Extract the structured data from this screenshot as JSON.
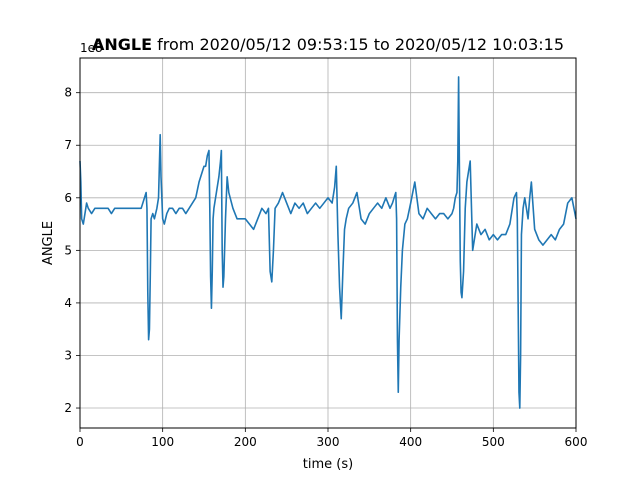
{
  "chart_data": {
    "type": "line",
    "title_bold": "ANGLE",
    "title_rest": " from 2020/05/12 09:53:15 to 2020/05/12 10:03:15",
    "xlabel": "time (s)",
    "ylabel": "ANGLE",
    "y_offset_label": "1e8",
    "xlim": [
      0,
      600
    ],
    "ylim": [
      1.62,
      8.66
    ],
    "x_ticks": [
      0,
      100,
      200,
      300,
      400,
      500,
      600
    ],
    "x_tick_labels": [
      "0",
      "100",
      "200",
      "300",
      "400",
      "500",
      "600"
    ],
    "y_ticks": [
      2,
      3,
      4,
      5,
      6,
      7,
      8
    ],
    "y_tick_labels": [
      "2",
      "3",
      "4",
      "5",
      "6",
      "7",
      "8"
    ],
    "grid": true,
    "line_color": "#1f77b4",
    "series": [
      {
        "x": [
          0,
          1,
          2,
          4,
          6,
          8,
          10,
          14,
          18,
          22,
          26,
          30,
          34,
          38,
          42,
          46,
          50,
          54,
          58,
          62,
          66,
          70,
          74,
          78,
          80,
          81,
          82,
          83,
          84,
          85,
          86,
          88,
          90,
          93,
          95,
          96,
          97,
          98,
          99,
          100,
          102,
          105,
          108,
          112,
          116,
          120,
          124,
          128,
          132,
          136,
          140,
          144,
          148,
          150,
          152,
          154,
          156,
          157,
          158,
          159,
          160,
          161,
          162,
          163,
          165,
          168,
          170,
          171,
          172,
          173,
          174,
          176,
          178,
          180,
          185,
          190,
          195,
          200,
          205,
          210,
          215,
          220,
          225,
          228,
          230,
          232,
          234,
          236,
          240,
          245,
          250,
          255,
          260,
          265,
          270,
          275,
          280,
          285,
          290,
          295,
          300,
          305,
          308,
          310,
          312,
          314,
          316,
          318,
          320,
          322,
          325,
          330,
          335,
          340,
          345,
          350,
          355,
          360,
          365,
          370,
          375,
          378,
          380,
          382,
          383,
          384,
          385,
          386,
          388,
          390,
          393,
          396,
          400,
          405,
          410,
          415,
          420,
          425,
          430,
          435,
          440,
          445,
          450,
          452,
          454,
          456,
          457,
          458,
          459,
          460,
          461,
          462,
          464,
          466,
          468,
          470,
          472,
          475,
          480,
          485,
          490,
          495,
          500,
          505,
          510,
          515,
          520,
          525,
          528,
          529,
          530,
          531,
          532,
          533,
          534,
          536,
          538,
          540,
          542,
          544,
          546,
          550,
          555,
          560,
          565,
          570,
          575,
          580,
          585,
          590,
          595,
          600
        ],
        "values": [
          6.7,
          6.3,
          5.6,
          5.5,
          5.7,
          5.9,
          5.8,
          5.7,
          5.8,
          5.8,
          5.8,
          5.8,
          5.8,
          5.7,
          5.8,
          5.8,
          5.8,
          5.8,
          5.8,
          5.8,
          5.8,
          5.8,
          5.8,
          6.0,
          6.1,
          5.8,
          4.2,
          3.3,
          3.5,
          4.5,
          5.6,
          5.7,
          5.6,
          5.8,
          6.0,
          6.6,
          7.2,
          6.4,
          6.0,
          5.6,
          5.5,
          5.7,
          5.8,
          5.8,
          5.7,
          5.8,
          5.8,
          5.7,
          5.8,
          5.9,
          6.0,
          6.3,
          6.5,
          6.6,
          6.6,
          6.8,
          6.9,
          5.8,
          4.5,
          3.9,
          4.6,
          5.6,
          5.8,
          5.9,
          6.1,
          6.4,
          6.7,
          6.9,
          5.0,
          4.3,
          4.5,
          5.6,
          6.4,
          6.1,
          5.8,
          5.6,
          5.6,
          5.6,
          5.5,
          5.4,
          5.6,
          5.8,
          5.7,
          5.8,
          4.6,
          4.4,
          5.0,
          5.8,
          5.9,
          6.1,
          5.9,
          5.7,
          5.9,
          5.8,
          5.9,
          5.7,
          5.8,
          5.9,
          5.8,
          5.9,
          6.0,
          5.9,
          6.2,
          6.6,
          5.3,
          4.3,
          3.7,
          4.6,
          5.4,
          5.6,
          5.8,
          5.9,
          6.1,
          5.6,
          5.5,
          5.7,
          5.8,
          5.9,
          5.8,
          6.0,
          5.8,
          5.9,
          6.0,
          6.1,
          5.6,
          3.3,
          2.3,
          3.3,
          4.3,
          5.0,
          5.5,
          5.6,
          5.9,
          6.3,
          5.7,
          5.6,
          5.8,
          5.7,
          5.6,
          5.7,
          5.7,
          5.6,
          5.7,
          5.8,
          6.0,
          6.1,
          6.7,
          8.3,
          6.5,
          4.8,
          4.2,
          4.1,
          4.6,
          5.8,
          6.3,
          6.5,
          6.7,
          5.0,
          5.5,
          5.3,
          5.4,
          5.2,
          5.3,
          5.2,
          5.3,
          5.3,
          5.5,
          6.0,
          6.1,
          5.6,
          4.0,
          2.3,
          2.0,
          3.0,
          5.3,
          5.8,
          6.0,
          5.8,
          5.6,
          6.0,
          6.3,
          5.4,
          5.2,
          5.1,
          5.2,
          5.3,
          5.2,
          5.4,
          5.5,
          5.9,
          6.0,
          5.6
        ]
      }
    ]
  }
}
